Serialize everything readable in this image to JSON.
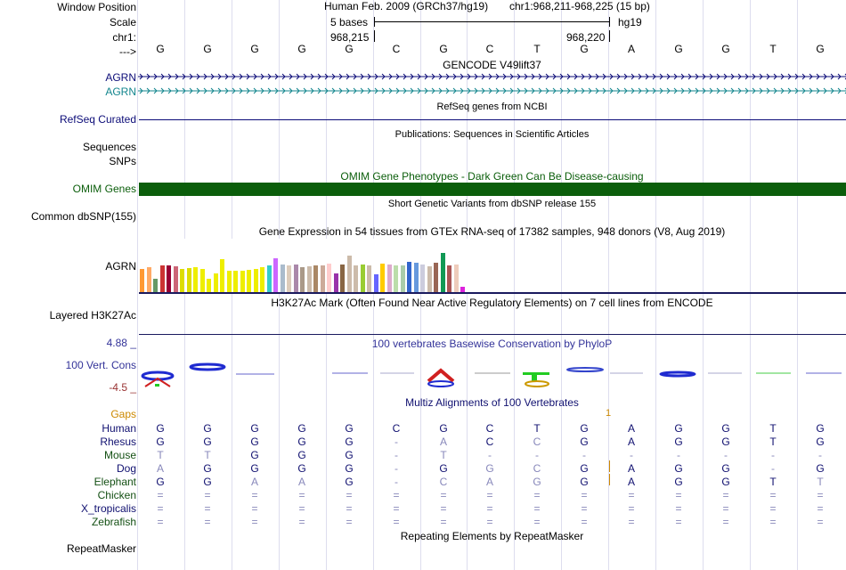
{
  "header": {
    "assembly": "Human Feb. 2009 (GRCh37/hg19)",
    "position": "chr1:968,211-968,225 (15 bp)",
    "scale_text": "5 bases",
    "scale_db": "hg19",
    "coord_left": "968,215",
    "coord_right": "968,220"
  },
  "labels": {
    "window_position": "Window Position",
    "scale": "Scale",
    "chr": "chr1:",
    "arrow": "--->",
    "agrn1": "AGRN",
    "agrn2": "AGRN",
    "refseq": "RefSeq Curated",
    "sequences": "Sequences",
    "snps": "SNPs",
    "omim": "OMIM Genes",
    "common_dbsnp": "Common dbSNP(155)",
    "agrn_gtex": "AGRN",
    "layered": "Layered H3K27Ac",
    "cons_max": "4.88 _",
    "cons_label": "100 Vert. Cons",
    "cons_min": "-4.5 _"
  },
  "bases": [
    "G",
    "G",
    "G",
    "G",
    "G",
    "C",
    "G",
    "C",
    "T",
    "G",
    "A",
    "G",
    "G",
    "T",
    "G"
  ],
  "tracks": {
    "gencode": "GENCODE V49lift37",
    "refseq_title": "RefSeq genes from NCBI",
    "publications": "Publications: Sequences in Scientific Articles",
    "omim_title": "OMIM Gene Phenotypes - Dark Green Can Be Disease-causing",
    "dbsnp_title": "Short Genetic Variants from dbSNP release 155",
    "gtex_title": "Gene Expression in 54 tissues from GTEx RNA-seq of 17382 samples, 948 donors (V8, Aug 2019)",
    "h3k27_title": "H3K27Ac Mark (Often Found Near Active Regulatory Elements) on 7 cell lines from ENCODE",
    "phylop_title": "100 vertebrates Basewise Conservation by PhyloP",
    "multiz_title": "Multiz Alignments of 100 Vertebrates",
    "repeat_title": "Repeating Elements by RepeatMasker"
  },
  "colors": {
    "omim_bar": "#0b5e0b",
    "gencode_blue": "#0c0c78",
    "gencode_teal": "#12858d",
    "maf_blue": "#101070"
  },
  "gtex_values": [
    {
      "v": 0.44,
      "c": "#ff9933"
    },
    {
      "v": 0.46,
      "c": "#ffaa66"
    },
    {
      "v": 0.25,
      "c": "#669966"
    },
    {
      "v": 0.5,
      "c": "#cc3333"
    },
    {
      "v": 0.5,
      "c": "#990033"
    },
    {
      "v": 0.49,
      "c": "#cc6677"
    },
    {
      "v": 0.44,
      "c": "#dddd00"
    },
    {
      "v": 0.45,
      "c": "#dddd00"
    },
    {
      "v": 0.46,
      "c": "#eeee00"
    },
    {
      "v": 0.44,
      "c": "#eeee00"
    },
    {
      "v": 0.25,
      "c": "#eeee00"
    },
    {
      "v": 0.35,
      "c": "#eeee00"
    },
    {
      "v": 0.62,
      "c": "#eeee00"
    },
    {
      "v": 0.4,
      "c": "#eeee00"
    },
    {
      "v": 0.4,
      "c": "#eeee00"
    },
    {
      "v": 0.4,
      "c": "#eeee00"
    },
    {
      "v": 0.42,
      "c": "#eeee00"
    },
    {
      "v": 0.44,
      "c": "#eeee00"
    },
    {
      "v": 0.46,
      "c": "#eeee00"
    },
    {
      "v": 0.5,
      "c": "#33cccc"
    },
    {
      "v": 0.64,
      "c": "#cc66ff"
    },
    {
      "v": 0.51,
      "c": "#aabbcc"
    },
    {
      "v": 0.5,
      "c": "#ddccbb"
    },
    {
      "v": 0.52,
      "c": "#aa88aa"
    },
    {
      "v": 0.47,
      "c": "#aa9988"
    },
    {
      "v": 0.48,
      "c": "#ccbbaa"
    },
    {
      "v": 0.5,
      "c": "#aa8866"
    },
    {
      "v": 0.5,
      "c": "#ccaa99"
    },
    {
      "v": 0.54,
      "c": "#ffcccc"
    },
    {
      "v": 0.35,
      "c": "#9933aa"
    },
    {
      "v": 0.52,
      "c": "#886644"
    },
    {
      "v": 0.68,
      "c": "#ccbbaa"
    },
    {
      "v": 0.5,
      "c": "#ccbbaa"
    },
    {
      "v": 0.51,
      "c": "#99cc33"
    },
    {
      "v": 0.5,
      "c": "#ccbbaa"
    },
    {
      "v": 0.34,
      "c": "#6666ff"
    },
    {
      "v": 0.53,
      "c": "#ffcc00"
    },
    {
      "v": 0.52,
      "c": "#ddaacc"
    },
    {
      "v": 0.5,
      "c": "#bbddaa"
    },
    {
      "v": 0.5,
      "c": "#aaccaa"
    },
    {
      "v": 0.56,
      "c": "#3366cc"
    },
    {
      "v": 0.55,
      "c": "#6699dd"
    },
    {
      "v": 0.52,
      "c": "#ccccdd"
    },
    {
      "v": 0.49,
      "c": "#ccbbaa"
    },
    {
      "v": 0.55,
      "c": "#996655"
    },
    {
      "v": 0.73,
      "c": "#119955"
    },
    {
      "v": 0.5,
      "c": "#aa5555"
    },
    {
      "v": 0.52,
      "c": "#eeccbb"
    },
    {
      "v": 0.1,
      "c": "#dd22dd"
    }
  ],
  "multiz": {
    "gaps_label": "Gaps",
    "gap_marker": "1",
    "species": [
      {
        "name": "Human",
        "color": "#101070",
        "seq": [
          "G",
          "G",
          "G",
          "G",
          "G",
          "C",
          "G",
          "C",
          "T",
          "G",
          "A",
          "G",
          "G",
          "T",
          "G"
        ]
      },
      {
        "name": "Rhesus",
        "color": "#101070",
        "seq": [
          "G",
          "G",
          "G",
          "G",
          "G",
          "-",
          "A",
          "C",
          "C",
          "G",
          "A",
          "G",
          "G",
          "T",
          "G"
        ]
      },
      {
        "name": "Mouse",
        "color": "#145014",
        "seq": [
          "T",
          "T",
          "G",
          "G",
          "G",
          "-",
          "T",
          "-",
          "-",
          "-",
          "-",
          "-",
          "-",
          "-",
          "-"
        ]
      },
      {
        "name": "Dog",
        "color": "#101070",
        "seq": [
          "A",
          "G",
          "G",
          "G",
          "G",
          "-",
          "G",
          "G",
          "C",
          "G",
          "A",
          "G",
          "G",
          "-",
          "G"
        ]
      },
      {
        "name": "Elephant",
        "color": "#145014",
        "seq": [
          "G",
          "G",
          "A",
          "A",
          "G",
          "-",
          "C",
          "A",
          "G",
          "G",
          "A",
          "G",
          "G",
          "T",
          "T"
        ]
      },
      {
        "name": "Chicken",
        "color": "#145014",
        "seq": [
          "=",
          "=",
          "=",
          "=",
          "=",
          "=",
          "=",
          "=",
          "=",
          "=",
          "=",
          "=",
          "=",
          "=",
          "="
        ]
      },
      {
        "name": "X_tropicalis",
        "color": "#101070",
        "seq": [
          "=",
          "=",
          "=",
          "=",
          "=",
          "=",
          "=",
          "=",
          "=",
          "=",
          "=",
          "=",
          "=",
          "=",
          "="
        ]
      },
      {
        "name": "Zebrafish",
        "color": "#145014",
        "seq": [
          "=",
          "=",
          "=",
          "=",
          "=",
          "=",
          "=",
          "=",
          "=",
          "=",
          "=",
          "=",
          "=",
          "=",
          "="
        ]
      }
    ],
    "mismatch_marks": [
      [
        1,
        6
      ],
      [
        1,
        8
      ],
      [
        2,
        0
      ],
      [
        2,
        1
      ],
      [
        2,
        6
      ],
      [
        3,
        0
      ],
      [
        3,
        7
      ],
      [
        3,
        8
      ],
      [
        4,
        2
      ],
      [
        4,
        3
      ],
      [
        4,
        6
      ],
      [
        4,
        7
      ],
      [
        4,
        8
      ],
      [
        4,
        14
      ]
    ]
  },
  "repeat_label": "RepeatMasker"
}
